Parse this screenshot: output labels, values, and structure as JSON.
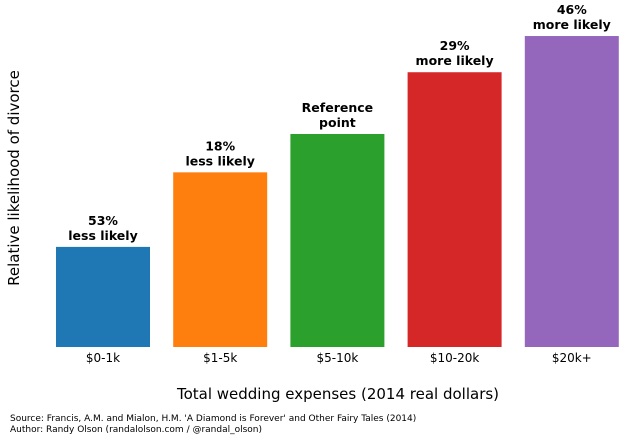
{
  "chart_data": {
    "type": "bar",
    "categories": [
      "$0-1k",
      "$1-5k",
      "$5-10k",
      "$10-20k",
      "$20k+"
    ],
    "values": [
      0.47,
      0.82,
      1.0,
      1.29,
      1.46
    ],
    "data_labels": [
      [
        "53%",
        "less likely"
      ],
      [
        "18%",
        "less likely"
      ],
      [
        "Reference",
        "point"
      ],
      [
        "29%",
        "more likely"
      ],
      [
        "46%",
        "more likely"
      ]
    ],
    "colors": [
      "#1f77b4",
      "#ff7f0e",
      "#2ca02c",
      "#d62728",
      "#9467bd"
    ],
    "xlabel": "Total wedding expenses (2014 real dollars)",
    "ylabel": "Relative likelihood of divorce",
    "grid": false
  },
  "footer": {
    "source": "Source: Francis, A.M. and Mialon, H.M. 'A Diamond is Forever' and Other Fairy Tales (2014)",
    "author": "Author: Randy Olson (randalolson.com / @randal_olson)"
  }
}
